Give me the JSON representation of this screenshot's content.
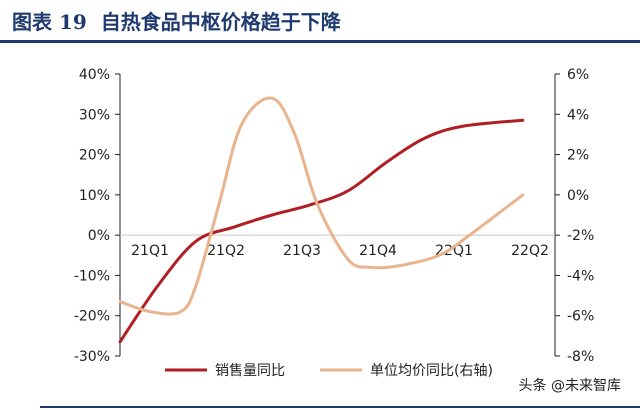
{
  "header": {
    "figure_label": "图表 19",
    "title": "自热食品中枢价格趋于下降"
  },
  "watermark": "头条 @未来智库",
  "colors": {
    "brand_blue": "#1f3a6e",
    "sales_series": "#b01e23",
    "price_series": "#e8b48e",
    "zero_line": "#c9c9c9"
  },
  "chart_data": {
    "type": "line",
    "categories": [
      "21Q1",
      "21Q2",
      "21Q3",
      "21Q4",
      "22Q1",
      "22Q2"
    ],
    "x_range": [
      0,
      5.5
    ],
    "x_ticks": [
      0,
      1,
      2,
      3,
      4,
      5
    ],
    "ylim_left": [
      -30,
      40
    ],
    "ylim_right": [
      -8,
      6
    ],
    "yticks_left": [
      "40%",
      "30%",
      "20%",
      "10%",
      "0%",
      "-10%",
      "-20%",
      "-30%"
    ],
    "yticks_right": [
      "6%",
      "4%",
      "2%",
      "0%",
      "-2%",
      "-4%",
      "-6%",
      "-8%"
    ],
    "legend_position": "bottom",
    "grid": false,
    "series": [
      {
        "name": "销售量同比",
        "axis": "left",
        "x": [
          0,
          0.5,
          1,
          1.5,
          2,
          2.5,
          3,
          3.5,
          4,
          4.5,
          5.3
        ],
        "values": [
          -26.5,
          -12.5,
          -1.5,
          2,
          5,
          7.5,
          11,
          18,
          24,
          27,
          28.5
        ]
      },
      {
        "name": "单位均价同比(右轴)",
        "axis": "right",
        "x": [
          0,
          0.4,
          0.8,
          1.0,
          1.3,
          1.6,
          2.0,
          2.3,
          2.6,
          3.0,
          3.3,
          3.7,
          4.2,
          4.6,
          5.3
        ],
        "values": [
          -5.3,
          -5.8,
          -5.8,
          -4.5,
          -0.5,
          3.5,
          4.8,
          3.0,
          -0.5,
          -3.2,
          -3.6,
          -3.5,
          -3.0,
          -2.0,
          0.0
        ]
      }
    ]
  }
}
